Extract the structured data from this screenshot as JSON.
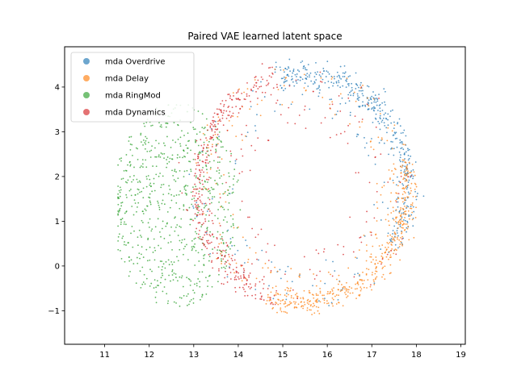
{
  "chart_data": {
    "type": "scatter",
    "title": "Paired VAE learned latent space",
    "xlabel": "",
    "ylabel": "",
    "xlim": [
      10.1,
      19.1
    ],
    "ylim": [
      -1.75,
      4.9
    ],
    "xticks": [
      11,
      12,
      13,
      14,
      15,
      16,
      17,
      18,
      19
    ],
    "yticks": [
      -1,
      0,
      1,
      2,
      3,
      4
    ],
    "grid": false,
    "legend_position": "upper-left",
    "series": [
      {
        "name": "mda Overdrive",
        "color": "#1f77b4",
        "count": 520,
        "center": [
          15.45,
          1.75
        ],
        "radius_range": [
          1.7,
          2.8
        ],
        "arc_deg": [
          -30,
          105
        ],
        "notes": "concentrated on outer ring from top (x≈14.8–16.5, y≈4.2) to right side (x≈17.5, y≈1.0), with sparse scatter inside"
      },
      {
        "name": "mda Delay",
        "color": "#ff7f0e",
        "count": 600,
        "center": [
          15.45,
          1.75
        ],
        "radius_range": [
          1.8,
          2.75
        ],
        "arc_deg": [
          -110,
          15
        ],
        "notes": "dense along lower-right ring (x≈15.5–17.8, y≈-1.3–2.0), plus points near top edge and scattered interior"
      },
      {
        "name": "mda RingMod",
        "color": "#2ca02c",
        "count": 700,
        "x_range": [
          11.3,
          14.1
        ],
        "y_range": [
          -0.9,
          3.6
        ],
        "notes": "filled blob on the left, x≈11.3–14.1, y≈-0.9–3.6"
      },
      {
        "name": "mda Dynamics",
        "color": "#d62728",
        "count": 500,
        "center": [
          15.45,
          1.75
        ],
        "radius_range": [
          1.3,
          2.75
        ],
        "arc_deg": [
          105,
          255
        ],
        "notes": "dense at top-left arc (x≈13.5–14.8, y≈3.5–4.2), bottom (x≈14.5–15.5, y≈-0.7) and right edge (x≈17.5, y≈1–2), with interior scatter"
      }
    ]
  }
}
